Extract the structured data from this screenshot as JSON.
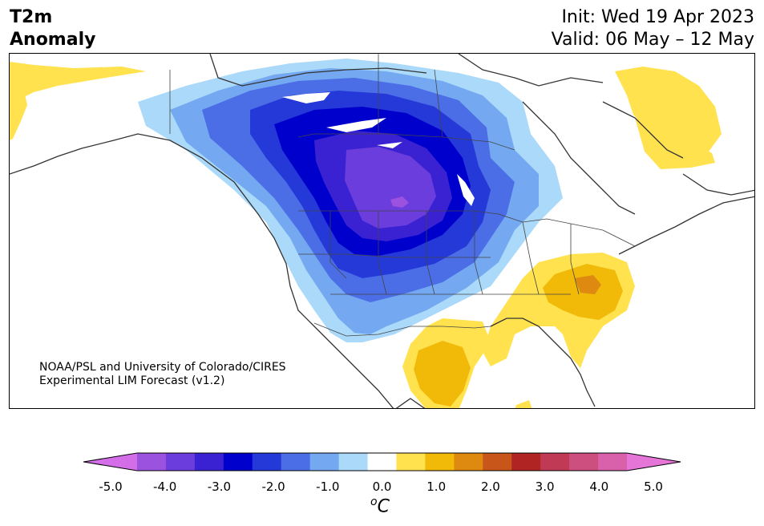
{
  "title": {
    "left_line1": "T2m",
    "left_line2": "Anomaly",
    "right_line1": "Init: Wed 19 Apr 2023",
    "right_line2": "Valid: 06 May – 12 May"
  },
  "credit": {
    "line1": "NOAA/PSL and University of Colorado/CIRES",
    "line2": "Experimental LIM Forecast (v1.2)"
  },
  "colorbar": {
    "unit_base": "C",
    "unit_sup": "o",
    "tick_labels": [
      "-5.0",
      "-4.0",
      "-3.0",
      "-2.0",
      "-1.0",
      "0.0",
      "1.0",
      "2.0",
      "3.0",
      "4.0",
      "5.0"
    ],
    "colors": [
      "#d36ee8",
      "#9b52df",
      "#6a3ddc",
      "#3a22d3",
      "#0000cd",
      "#2539d9",
      "#4b6ee6",
      "#74a9f1",
      "#aad9f9",
      "#ffffff",
      "#ffe24d",
      "#f1b908",
      "#de8a10",
      "#c8561a",
      "#b02424",
      "#c03a55",
      "#cd4f80",
      "#d961ac",
      "#e575d6"
    ],
    "under_color": "#d36ee8",
    "over_color": "#e575d6"
  },
  "map": {
    "region": "North America",
    "field": "2-m temperature anomaly"
  }
}
